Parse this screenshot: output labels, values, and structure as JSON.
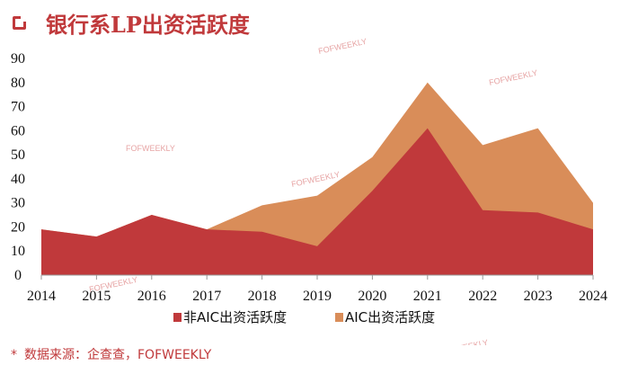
{
  "header": {
    "title": "银行系LP出资活跃度",
    "icon": "square-bracket-icon"
  },
  "source": {
    "mark": "*",
    "text": "数据来源：企查查，FOFWEEKLY"
  },
  "watermark": "FOFWEEKLY",
  "colors": {
    "accent": "#c0393b",
    "series_dark": "#c0393b",
    "series_light": "#d98d59"
  },
  "chart_data": {
    "type": "area",
    "title": "银行系LP出资活跃度",
    "x": [
      "2014",
      "2015",
      "2016",
      "2017",
      "2018",
      "2019",
      "2020",
      "2021",
      "2022",
      "2023",
      "2024"
    ],
    "ylim": [
      0,
      90
    ],
    "yticks": [
      0,
      10,
      20,
      30,
      40,
      50,
      60,
      70,
      80,
      90
    ],
    "series": [
      {
        "name": "非AIC出资活跃度",
        "color": "#c0393b",
        "values": [
          19,
          16,
          25,
          19,
          18,
          12,
          35,
          61,
          27,
          26,
          19
        ]
      },
      {
        "name": "AIC出资活跃度",
        "color": "#d98d59",
        "values": [
          19,
          16,
          25,
          19,
          29,
          33,
          49,
          80,
          54,
          61,
          30
        ]
      }
    ],
    "stacked": false,
    "legend_position": "bottom",
    "grid": false
  }
}
